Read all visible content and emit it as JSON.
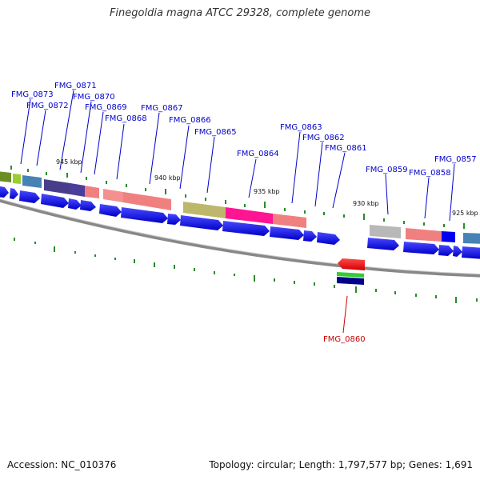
{
  "title": "Finegoldia magna ATCC 29328, complete genome",
  "footer": {
    "accession": "Accession: NC_010376",
    "summary": "Topology: circular; Length: 1,797,577 bp; Genes: 1,691"
  },
  "colors": {
    "label_blue": "#0000cc",
    "label_red": "#cc0000",
    "arrow_blue": "#0000ee",
    "backbone": "#888888",
    "tick_green": "#2a8a2a"
  },
  "position_ticks": [
    {
      "label": "945 kbp"
    },
    {
      "label": "940 kbp"
    },
    {
      "label": "935 kbp"
    },
    {
      "label": "930 kbp"
    },
    {
      "label": "925 kbp"
    }
  ],
  "gene_labels": [
    {
      "name": "FMG_0873",
      "color": "#0000cc"
    },
    {
      "name": "FMG_0872",
      "color": "#0000cc"
    },
    {
      "name": "FMG_0871",
      "color": "#0000cc"
    },
    {
      "name": "FMG_0870",
      "color": "#0000cc"
    },
    {
      "name": "FMG_0869",
      "color": "#0000cc"
    },
    {
      "name": "FMG_0868",
      "color": "#0000cc"
    },
    {
      "name": "FMG_0867",
      "color": "#0000cc"
    },
    {
      "name": "FMG_0866",
      "color": "#0000cc"
    },
    {
      "name": "FMG_0865",
      "color": "#0000cc"
    },
    {
      "name": "FMG_0864",
      "color": "#0000cc"
    },
    {
      "name": "FMG_0863",
      "color": "#0000cc"
    },
    {
      "name": "FMG_0862",
      "color": "#0000cc"
    },
    {
      "name": "FMG_0861",
      "color": "#0000cc"
    },
    {
      "name": "FMG_0859",
      "color": "#0000cc"
    },
    {
      "name": "FMG_0858",
      "color": "#0000cc"
    },
    {
      "name": "FMG_0857",
      "color": "#0000cc"
    },
    {
      "name": "FMG_0860",
      "color": "#cc0000"
    }
  ]
}
